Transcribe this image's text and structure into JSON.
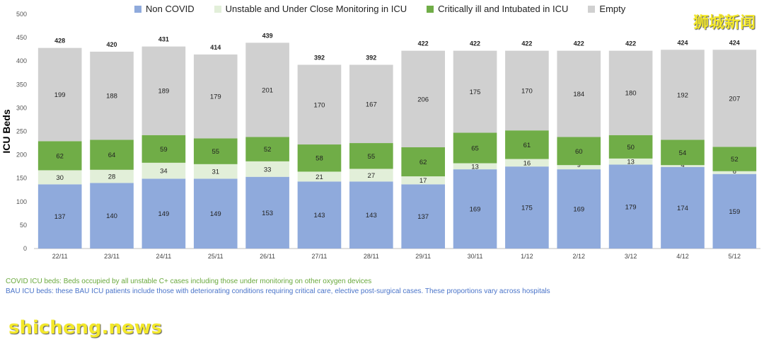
{
  "chart_data": {
    "type": "bar",
    "stacked": true,
    "title": "",
    "xlabel": "",
    "ylabel": "ICU Beds",
    "ylim": [
      0,
      500
    ],
    "yticks": [
      0,
      50,
      100,
      150,
      200,
      250,
      300,
      350,
      400,
      450,
      500
    ],
    "grid": false,
    "legend_position": "top",
    "categories": [
      "22/11",
      "23/11",
      "24/11",
      "25/11",
      "26/11",
      "27/11",
      "28/11",
      "29/11",
      "30/11",
      "1/12",
      "2/12",
      "3/12",
      "4/12",
      "5/12"
    ],
    "totals": [
      428,
      420,
      431,
      414,
      439,
      392,
      392,
      422,
      422,
      422,
      422,
      422,
      424,
      424
    ],
    "series": [
      {
        "name": "Non COVID",
        "color": "#8faadc",
        "values": [
          137,
          140,
          149,
          149,
          153,
          143,
          143,
          137,
          169,
          175,
          169,
          179,
          174,
          159
        ]
      },
      {
        "name": "Unstable and Under Close Monitoring in ICU",
        "color": "#e2efd9",
        "values": [
          30,
          28,
          34,
          31,
          33,
          21,
          27,
          17,
          13,
          16,
          9,
          13,
          4,
          6
        ]
      },
      {
        "name": "Critically ill and Intubated in ICU",
        "color": "#70ad47",
        "values": [
          62,
          64,
          59,
          55,
          52,
          58,
          55,
          62,
          65,
          61,
          60,
          50,
          54,
          52
        ]
      },
      {
        "name": "Empty",
        "color": "#d0d0d0",
        "values": [
          199,
          188,
          189,
          179,
          201,
          170,
          167,
          206,
          175,
          170,
          184,
          180,
          192,
          207
        ]
      }
    ]
  },
  "notes": {
    "covid": "COVID ICU beds: Beds occupied by all unstable C+ cases including those under monitoring on other oxygen devices",
    "bau": "BAU ICU beds: these BAU ICU patients include those with deteriorating conditions requiring critical care, elective post-surgical cases. These proportions vary across hospitals"
  },
  "watermarks": {
    "cn": "狮城新闻",
    "en": "shicheng.news"
  }
}
